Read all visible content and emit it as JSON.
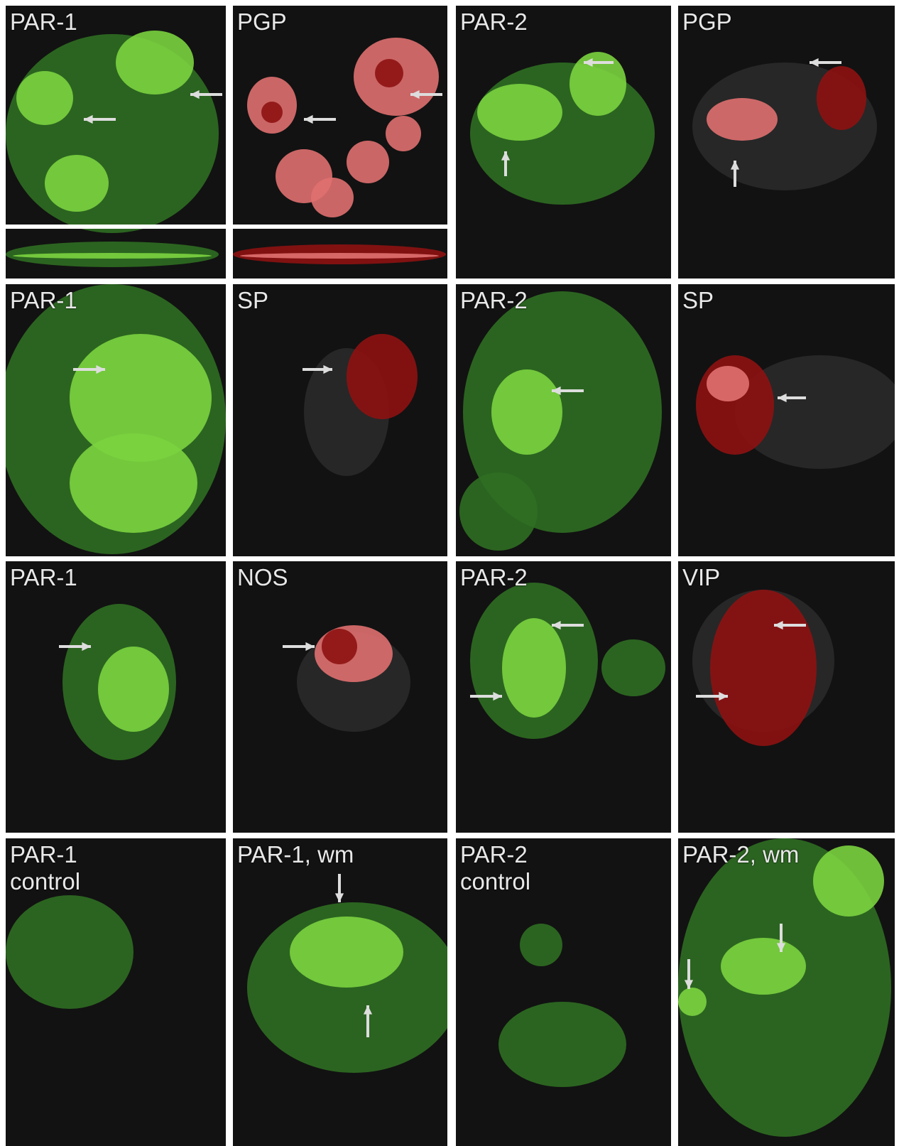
{
  "panels": [
    {
      "label": "PAR-1"
    },
    {
      "label": "PGP"
    },
    {
      "label": "PAR-2"
    },
    {
      "label": "PGP"
    },
    {
      "label": "PAR-1"
    },
    {
      "label": "SP"
    },
    {
      "label": "PAR-2"
    },
    {
      "label": "SP"
    },
    {
      "label": "PAR-1"
    },
    {
      "label": "NOS"
    },
    {
      "label": "PAR-2"
    },
    {
      "label": "VIP"
    },
    {
      "label": "PAR-1",
      "sublabel": "control"
    },
    {
      "label": "PAR-1, wm"
    },
    {
      "label": "PAR-2",
      "sublabel": "control"
    },
    {
      "label": "PAR-2, wm"
    }
  ]
}
